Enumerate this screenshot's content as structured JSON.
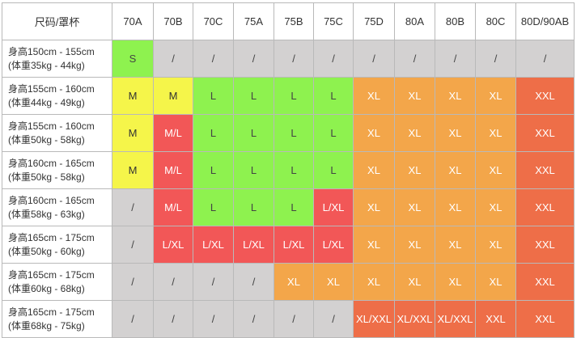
{
  "table": {
    "corner_label": "尺码/罩杯",
    "columns": [
      "70A",
      "70B",
      "70C",
      "75A",
      "75B",
      "75C",
      "75D",
      "80A",
      "80B",
      "80C",
      "80D/90AB"
    ],
    "colors": {
      "grey": "#d3d1d1",
      "green": "#8ef24f",
      "yellow": "#f5f54a",
      "red": "#f25757",
      "orange": "#f3a64a",
      "coral": "#ee6e48"
    },
    "rows": [
      {
        "height_label": "身高150cm - 155cm",
        "weight_label": "(体重35kg - 44kg)",
        "cells": [
          {
            "value": "S",
            "color": "green"
          },
          {
            "value": "/",
            "color": "grey"
          },
          {
            "value": "/",
            "color": "grey"
          },
          {
            "value": "/",
            "color": "grey"
          },
          {
            "value": "/",
            "color": "grey"
          },
          {
            "value": "/",
            "color": "grey"
          },
          {
            "value": "/",
            "color": "grey"
          },
          {
            "value": "/",
            "color": "grey"
          },
          {
            "value": "/",
            "color": "grey"
          },
          {
            "value": "/",
            "color": "grey"
          },
          {
            "value": "/",
            "color": "grey"
          }
        ]
      },
      {
        "height_label": "身高155cm - 160cm",
        "weight_label": "(体重44kg - 49kg)",
        "cells": [
          {
            "value": "M",
            "color": "yellow"
          },
          {
            "value": "M",
            "color": "yellow"
          },
          {
            "value": "L",
            "color": "green"
          },
          {
            "value": "L",
            "color": "green"
          },
          {
            "value": "L",
            "color": "green"
          },
          {
            "value": "L",
            "color": "green"
          },
          {
            "value": "XL",
            "color": "orange"
          },
          {
            "value": "XL",
            "color": "orange"
          },
          {
            "value": "XL",
            "color": "orange"
          },
          {
            "value": "XL",
            "color": "orange"
          },
          {
            "value": "XXL",
            "color": "coral"
          }
        ]
      },
      {
        "height_label": "身高155cm - 160cm",
        "weight_label": "(体重50kg - 58kg)",
        "cells": [
          {
            "value": "M",
            "color": "yellow"
          },
          {
            "value": "M/L",
            "color": "red"
          },
          {
            "value": "L",
            "color": "green"
          },
          {
            "value": "L",
            "color": "green"
          },
          {
            "value": "L",
            "color": "green"
          },
          {
            "value": "L",
            "color": "green"
          },
          {
            "value": "XL",
            "color": "orange"
          },
          {
            "value": "XL",
            "color": "orange"
          },
          {
            "value": "XL",
            "color": "orange"
          },
          {
            "value": "XL",
            "color": "orange"
          },
          {
            "value": "XXL",
            "color": "coral"
          }
        ]
      },
      {
        "height_label": "身高160cm - 165cm",
        "weight_label": "(体重50kg - 58kg)",
        "cells": [
          {
            "value": "M",
            "color": "yellow"
          },
          {
            "value": "M/L",
            "color": "red"
          },
          {
            "value": "L",
            "color": "green"
          },
          {
            "value": "L",
            "color": "green"
          },
          {
            "value": "L",
            "color": "green"
          },
          {
            "value": "L",
            "color": "green"
          },
          {
            "value": "XL",
            "color": "orange"
          },
          {
            "value": "XL",
            "color": "orange"
          },
          {
            "value": "XL",
            "color": "orange"
          },
          {
            "value": "XL",
            "color": "orange"
          },
          {
            "value": "XXL",
            "color": "coral"
          }
        ]
      },
      {
        "height_label": "身高160cm - 165cm",
        "weight_label": "(体重58kg - 63kg)",
        "cells": [
          {
            "value": "/",
            "color": "grey"
          },
          {
            "value": "M/L",
            "color": "red"
          },
          {
            "value": "L",
            "color": "green"
          },
          {
            "value": "L",
            "color": "green"
          },
          {
            "value": "L",
            "color": "green"
          },
          {
            "value": "L/XL",
            "color": "red"
          },
          {
            "value": "XL",
            "color": "orange"
          },
          {
            "value": "XL",
            "color": "orange"
          },
          {
            "value": "XL",
            "color": "orange"
          },
          {
            "value": "XL",
            "color": "orange"
          },
          {
            "value": "XXL",
            "color": "coral"
          }
        ]
      },
      {
        "height_label": "身高165cm - 175cm",
        "weight_label": "(体重50kg - 60kg)",
        "cells": [
          {
            "value": "/",
            "color": "grey"
          },
          {
            "value": "L/XL",
            "color": "red"
          },
          {
            "value": "L/XL",
            "color": "red"
          },
          {
            "value": "L/XL",
            "color": "red"
          },
          {
            "value": "L/XL",
            "color": "red"
          },
          {
            "value": "L/XL",
            "color": "red"
          },
          {
            "value": "XL",
            "color": "orange"
          },
          {
            "value": "XL",
            "color": "orange"
          },
          {
            "value": "XL",
            "color": "orange"
          },
          {
            "value": "XL",
            "color": "orange"
          },
          {
            "value": "XXL",
            "color": "coral"
          }
        ]
      },
      {
        "height_label": "身高165cm - 175cm",
        "weight_label": "(体重60kg - 68kg)",
        "cells": [
          {
            "value": "/",
            "color": "grey"
          },
          {
            "value": "/",
            "color": "grey"
          },
          {
            "value": "/",
            "color": "grey"
          },
          {
            "value": "/",
            "color": "grey"
          },
          {
            "value": "XL",
            "color": "orange"
          },
          {
            "value": "XL",
            "color": "orange"
          },
          {
            "value": "XL",
            "color": "orange"
          },
          {
            "value": "XL",
            "color": "orange"
          },
          {
            "value": "XL",
            "color": "orange"
          },
          {
            "value": "XL",
            "color": "orange"
          },
          {
            "value": "XXL",
            "color": "coral"
          }
        ]
      },
      {
        "height_label": "身高165cm - 175cm",
        "weight_label": "(体重68kg - 75kg)",
        "cells": [
          {
            "value": "/",
            "color": "grey"
          },
          {
            "value": "/",
            "color": "grey"
          },
          {
            "value": "/",
            "color": "grey"
          },
          {
            "value": "/",
            "color": "grey"
          },
          {
            "value": "/",
            "color": "grey"
          },
          {
            "value": "/",
            "color": "grey"
          },
          {
            "value": "XL/XXL",
            "color": "coral"
          },
          {
            "value": "XL/XXL",
            "color": "coral"
          },
          {
            "value": "XL/XXL",
            "color": "coral"
          },
          {
            "value": "XXL",
            "color": "coral"
          },
          {
            "value": "XXL",
            "color": "coral"
          }
        ]
      }
    ]
  }
}
